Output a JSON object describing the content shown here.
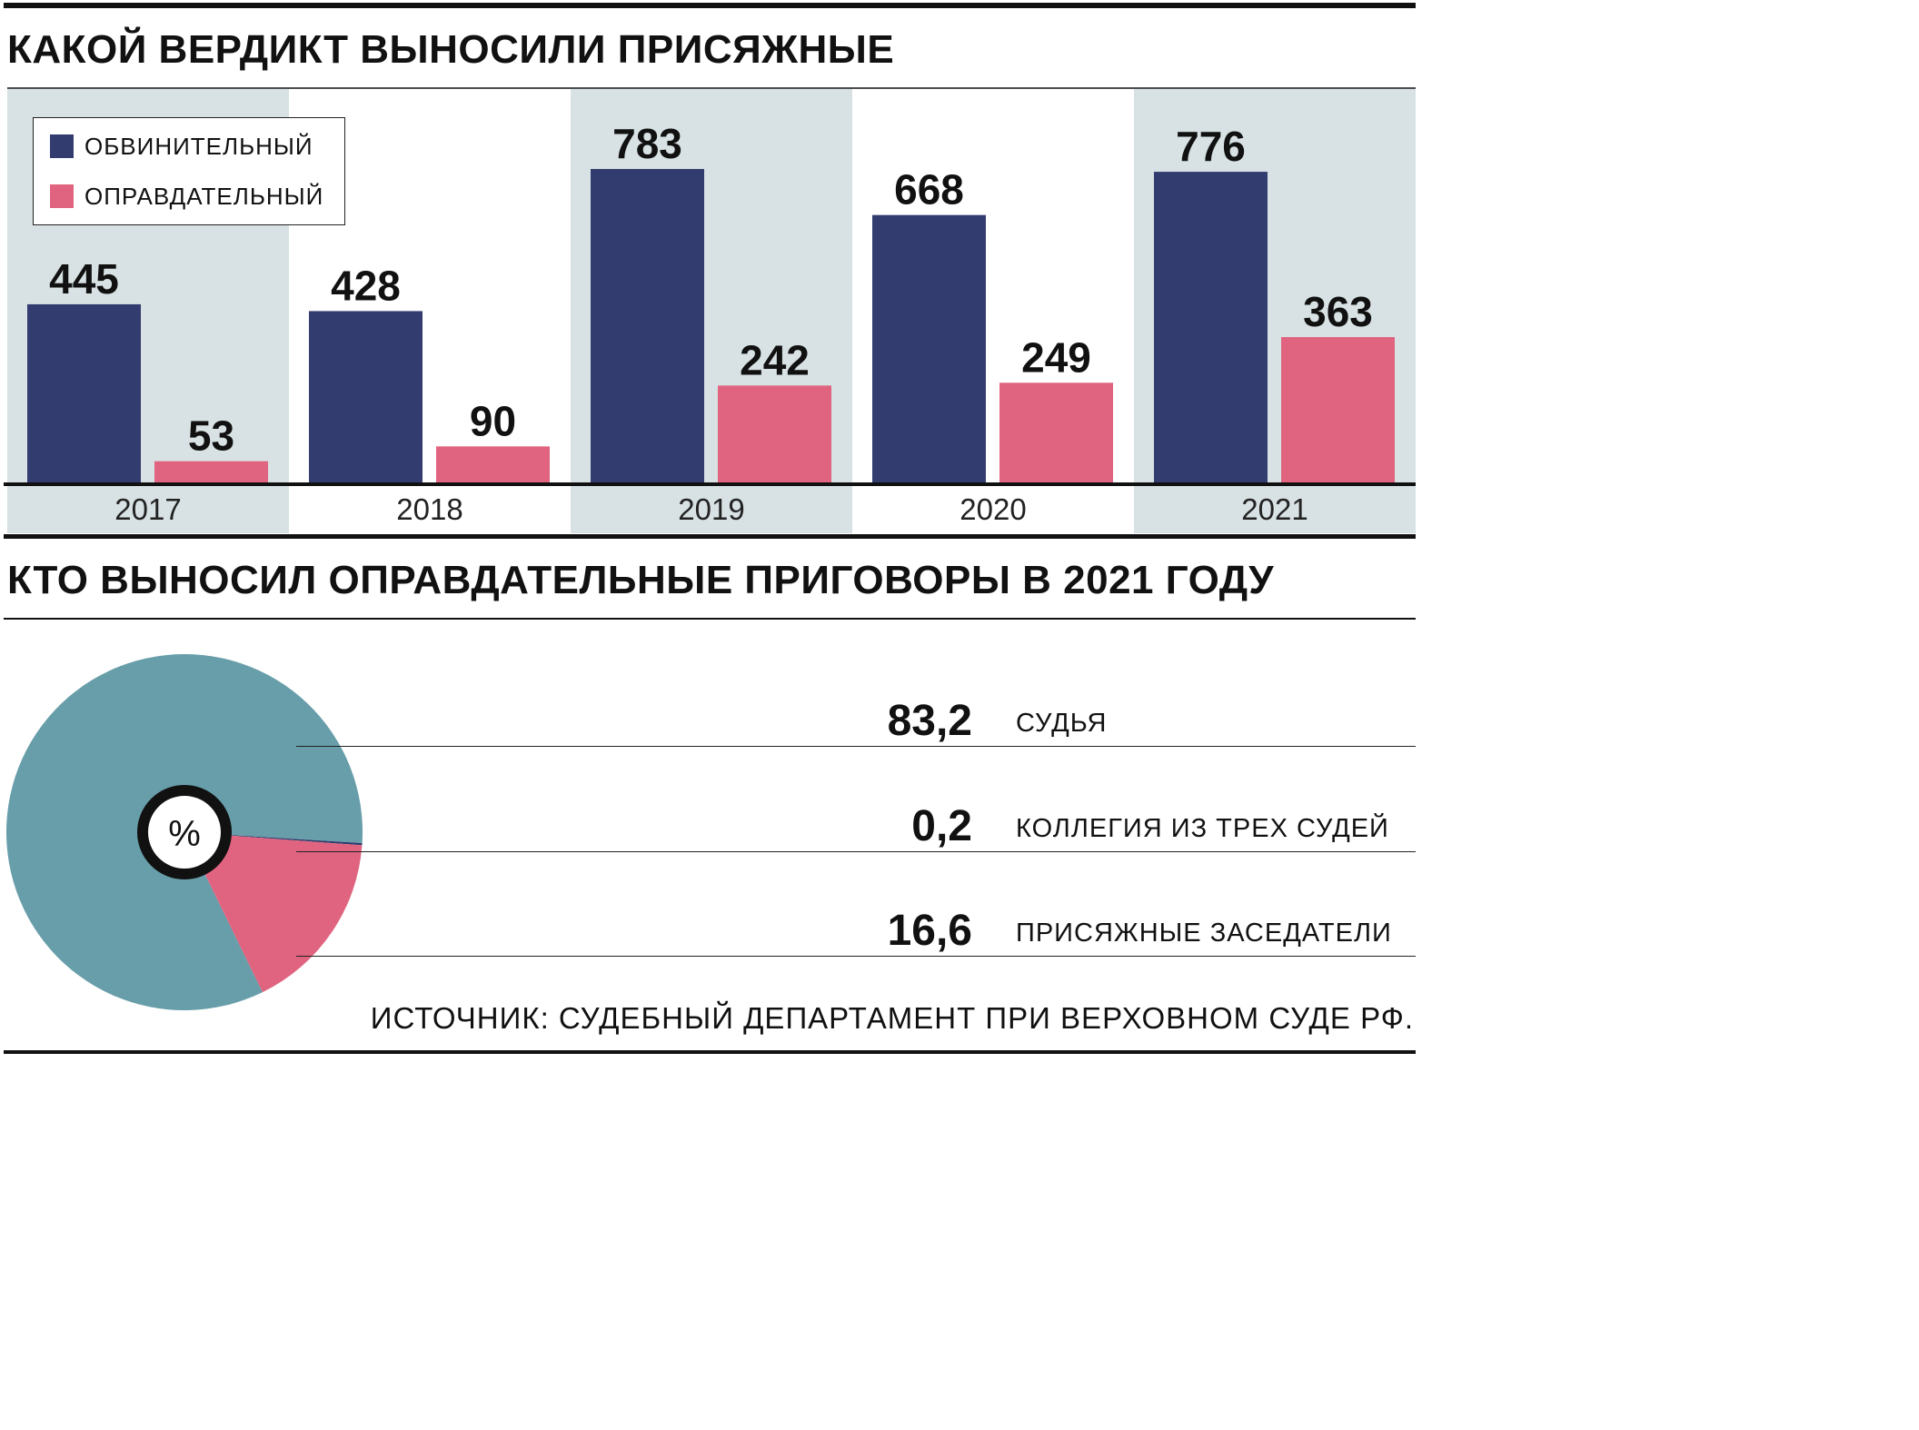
{
  "headings": {
    "top": "КАКОЙ ВЕРДИКТ ВЫНОСИЛИ ПРИСЯЖНЫЕ",
    "bottom": "КТО ВЫНОСИЛ ОПРАВДАТЕЛЬНЫЕ ПРИГОВОРЫ В 2021 ГОДУ"
  },
  "colors": {
    "guilty": "#323c6e",
    "acquittal": "#e0647f",
    "band": "#d8e2e4",
    "pie_judge": "#679ea9",
    "pie_panel": "#323c6e",
    "pie_jury": "#e0647f"
  },
  "chart_data": [
    {
      "type": "bar",
      "categories": [
        "2017",
        "2018",
        "2019",
        "2020",
        "2021"
      ],
      "series": [
        {
          "name": "ОБВИНИТЕЛЬНЫЙ",
          "values": [
            445,
            428,
            783,
            668,
            776
          ]
        },
        {
          "name": "ОПРАВДАТЕЛЬНЫЙ",
          "values": [
            53,
            90,
            242,
            249,
            363
          ]
        }
      ],
      "ylim": [
        0,
        783
      ],
      "legend_position": "top-left",
      "grid": false
    },
    {
      "type": "pie",
      "center_label": "%",
      "slices": [
        {
          "label": "СУДЬЯ",
          "value": 83.2,
          "display": "83,2"
        },
        {
          "label": "КОЛЛЕГИЯ ИЗ ТРЕХ СУДЕЙ",
          "value": 0.2,
          "display": "0,2"
        },
        {
          "label": "ПРИСЯЖНЫЕ ЗАСЕДАТЕЛИ",
          "value": 16.6,
          "display": "16,6"
        }
      ]
    }
  ],
  "source": "ИСТОЧНИК: СУДЕБНЫЙ ДЕПАРТАМЕНТ ПРИ ВЕРХОВНОМ СУДЕ РФ."
}
